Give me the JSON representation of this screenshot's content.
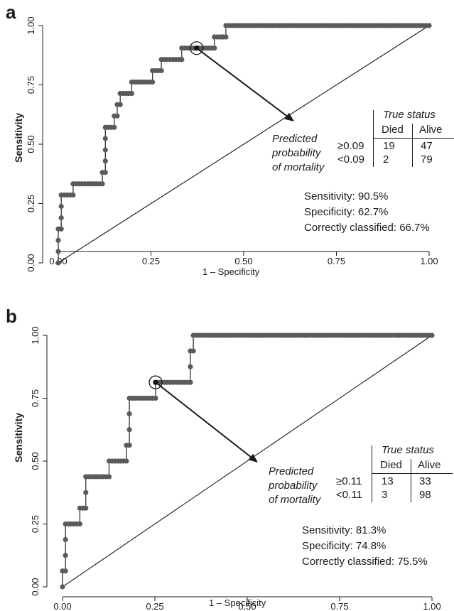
{
  "chart_data": [
    {
      "panel_label": "a",
      "type": "line",
      "xlabel": "1 – Specificity",
      "ylabel": "Sensitivity",
      "xlim": [
        0,
        1
      ],
      "ylim": [
        0,
        1
      ],
      "xticks": [
        "0.00",
        "0.25",
        "0.50",
        "0.75",
        "1.00"
      ],
      "yticks": [
        "0.00",
        "0.25",
        "0.50",
        "0.75",
        "1.00"
      ],
      "roc_points": [
        [
          0,
          0
        ],
        [
          0,
          0.048
        ],
        [
          0,
          0.095
        ],
        [
          0,
          0.143
        ],
        [
          0.008,
          0.143
        ],
        [
          0.008,
          0.19
        ],
        [
          0.008,
          0.238
        ],
        [
          0.008,
          0.286
        ],
        [
          0.016,
          0.286
        ],
        [
          0.024,
          0.286
        ],
        [
          0.032,
          0.286
        ],
        [
          0.04,
          0.286
        ],
        [
          0.04,
          0.333
        ],
        [
          0.048,
          0.333
        ],
        [
          0.056,
          0.333
        ],
        [
          0.064,
          0.333
        ],
        [
          0.072,
          0.333
        ],
        [
          0.08,
          0.333
        ],
        [
          0.087,
          0.333
        ],
        [
          0.095,
          0.333
        ],
        [
          0.103,
          0.333
        ],
        [
          0.111,
          0.333
        ],
        [
          0.119,
          0.333
        ],
        [
          0.119,
          0.381
        ],
        [
          0.127,
          0.381
        ],
        [
          0.127,
          0.429
        ],
        [
          0.127,
          0.476
        ],
        [
          0.127,
          0.524
        ],
        [
          0.127,
          0.571
        ],
        [
          0.135,
          0.571
        ],
        [
          0.143,
          0.571
        ],
        [
          0.151,
          0.571
        ],
        [
          0.151,
          0.619
        ],
        [
          0.159,
          0.619
        ],
        [
          0.159,
          0.667
        ],
        [
          0.167,
          0.667
        ],
        [
          0.167,
          0.714
        ],
        [
          0.175,
          0.714
        ],
        [
          0.183,
          0.714
        ],
        [
          0.19,
          0.714
        ],
        [
          0.198,
          0.714
        ],
        [
          0.198,
          0.762
        ],
        [
          0.206,
          0.762
        ],
        [
          0.214,
          0.762
        ],
        [
          0.222,
          0.762
        ],
        [
          0.23,
          0.762
        ],
        [
          0.238,
          0.762
        ],
        [
          0.246,
          0.762
        ],
        [
          0.254,
          0.762
        ],
        [
          0.254,
          0.81
        ],
        [
          0.262,
          0.81
        ],
        [
          0.27,
          0.81
        ],
        [
          0.278,
          0.81
        ],
        [
          0.278,
          0.857
        ],
        [
          0.286,
          0.857
        ],
        [
          0.294,
          0.857
        ],
        [
          0.302,
          0.857
        ],
        [
          0.31,
          0.857
        ],
        [
          0.317,
          0.857
        ],
        [
          0.325,
          0.857
        ],
        [
          0.333,
          0.857
        ],
        [
          0.333,
          0.905
        ],
        [
          0.341,
          0.905
        ],
        [
          0.349,
          0.905
        ],
        [
          0.357,
          0.905
        ],
        [
          0.365,
          0.905
        ],
        [
          0.373,
          0.905
        ],
        [
          0.381,
          0.905
        ],
        [
          0.389,
          0.905
        ],
        [
          0.397,
          0.905
        ],
        [
          0.405,
          0.905
        ],
        [
          0.413,
          0.905
        ],
        [
          0.421,
          0.905
        ],
        [
          0.421,
          0.952
        ],
        [
          0.429,
          0.952
        ],
        [
          0.437,
          0.952
        ],
        [
          0.444,
          0.952
        ],
        [
          0.452,
          0.952
        ],
        [
          0.452,
          1
        ],
        [
          0.46,
          1
        ],
        [
          0.468,
          1
        ],
        [
          0.476,
          1
        ],
        [
          0.484,
          1
        ],
        [
          0.492,
          1
        ],
        [
          0.5,
          1
        ],
        [
          0.508,
          1
        ],
        [
          0.516,
          1
        ],
        [
          0.524,
          1
        ],
        [
          0.532,
          1
        ],
        [
          0.54,
          1
        ],
        [
          0.548,
          1
        ],
        [
          0.556,
          1
        ],
        [
          0.563,
          1
        ],
        [
          0.571,
          1
        ],
        [
          0.579,
          1
        ],
        [
          0.587,
          1
        ],
        [
          0.595,
          1
        ],
        [
          0.603,
          1
        ],
        [
          0.611,
          1
        ],
        [
          0.619,
          1
        ],
        [
          0.627,
          1
        ],
        [
          0.635,
          1
        ],
        [
          0.643,
          1
        ],
        [
          0.651,
          1
        ],
        [
          0.659,
          1
        ],
        [
          0.667,
          1
        ],
        [
          0.675,
          1
        ],
        [
          0.683,
          1
        ],
        [
          0.69,
          1
        ],
        [
          0.698,
          1
        ],
        [
          0.706,
          1
        ],
        [
          0.714,
          1
        ],
        [
          0.722,
          1
        ],
        [
          0.73,
          1
        ],
        [
          0.738,
          1
        ],
        [
          0.746,
          1
        ],
        [
          0.754,
          1
        ],
        [
          0.762,
          1
        ],
        [
          0.77,
          1
        ],
        [
          0.778,
          1
        ],
        [
          0.786,
          1
        ],
        [
          0.794,
          1
        ],
        [
          0.802,
          1
        ],
        [
          0.81,
          1
        ],
        [
          0.817,
          1
        ],
        [
          0.825,
          1
        ],
        [
          0.833,
          1
        ],
        [
          0.841,
          1
        ],
        [
          0.849,
          1
        ],
        [
          0.857,
          1
        ],
        [
          0.865,
          1
        ],
        [
          0.873,
          1
        ],
        [
          0.881,
          1
        ],
        [
          0.889,
          1
        ],
        [
          0.897,
          1
        ],
        [
          0.905,
          1
        ],
        [
          0.913,
          1
        ],
        [
          0.921,
          1
        ],
        [
          0.929,
          1
        ],
        [
          0.937,
          1
        ],
        [
          0.944,
          1
        ],
        [
          0.952,
          1
        ],
        [
          0.96,
          1
        ],
        [
          0.968,
          1
        ],
        [
          0.976,
          1
        ],
        [
          0.984,
          1
        ],
        [
          0.992,
          1
        ],
        [
          1,
          1
        ]
      ],
      "reference_line": [
        [
          0,
          0
        ],
        [
          1,
          1
        ]
      ],
      "cutoff_point": [
        0.373,
        0.905
      ],
      "annotation": [
        "Predicted",
        "probability",
        "of mortality"
      ],
      "table": {
        "header": "True status",
        "columns": [
          "Died",
          "Alive"
        ],
        "rows": [
          {
            "label": "≥0.09",
            "values": [
              "19",
              "47"
            ]
          },
          {
            "label": "<0.09",
            "values": [
              "2",
              "79"
            ]
          }
        ]
      },
      "stats": [
        "Sensitivity: 90.5%",
        "Specificity: 62.7%",
        "Correctly classified: 66.7%"
      ],
      "color": "#5a5a5a"
    },
    {
      "panel_label": "b",
      "type": "line",
      "xlabel": "1 – Specificity",
      "ylabel": "Sensitivity",
      "xlim": [
        0,
        1
      ],
      "ylim": [
        0,
        1
      ],
      "xticks": [
        "0.00",
        "0.25",
        "0.50",
        "0.75",
        "1.00"
      ],
      "yticks": [
        "0.00",
        "0.25",
        "0.50",
        "0.75",
        "1.00"
      ],
      "roc_points": [
        [
          0,
          0
        ],
        [
          0,
          0.063
        ],
        [
          0.008,
          0.063
        ],
        [
          0.008,
          0.125
        ],
        [
          0.008,
          0.188
        ],
        [
          0.008,
          0.25
        ],
        [
          0.016,
          0.25
        ],
        [
          0.024,
          0.25
        ],
        [
          0.032,
          0.25
        ],
        [
          0.039,
          0.25
        ],
        [
          0.047,
          0.25
        ],
        [
          0.047,
          0.313
        ],
        [
          0.055,
          0.313
        ],
        [
          0.063,
          0.313
        ],
        [
          0.063,
          0.375
        ],
        [
          0.063,
          0.438
        ],
        [
          0.071,
          0.438
        ],
        [
          0.079,
          0.438
        ],
        [
          0.087,
          0.438
        ],
        [
          0.094,
          0.438
        ],
        [
          0.102,
          0.438
        ],
        [
          0.11,
          0.438
        ],
        [
          0.118,
          0.438
        ],
        [
          0.126,
          0.438
        ],
        [
          0.126,
          0.5
        ],
        [
          0.134,
          0.5
        ],
        [
          0.142,
          0.5
        ],
        [
          0.15,
          0.5
        ],
        [
          0.157,
          0.5
        ],
        [
          0.165,
          0.5
        ],
        [
          0.173,
          0.5
        ],
        [
          0.173,
          0.563
        ],
        [
          0.181,
          0.563
        ],
        [
          0.181,
          0.625
        ],
        [
          0.181,
          0.688
        ],
        [
          0.181,
          0.75
        ],
        [
          0.189,
          0.75
        ],
        [
          0.197,
          0.75
        ],
        [
          0.205,
          0.75
        ],
        [
          0.213,
          0.75
        ],
        [
          0.22,
          0.75
        ],
        [
          0.228,
          0.75
        ],
        [
          0.236,
          0.75
        ],
        [
          0.244,
          0.75
        ],
        [
          0.252,
          0.75
        ],
        [
          0.252,
          0.813
        ],
        [
          0.26,
          0.813
        ],
        [
          0.268,
          0.813
        ],
        [
          0.276,
          0.813
        ],
        [
          0.283,
          0.813
        ],
        [
          0.291,
          0.813
        ],
        [
          0.299,
          0.813
        ],
        [
          0.307,
          0.813
        ],
        [
          0.315,
          0.813
        ],
        [
          0.323,
          0.813
        ],
        [
          0.331,
          0.813
        ],
        [
          0.339,
          0.813
        ],
        [
          0.346,
          0.813
        ],
        [
          0.346,
          0.875
        ],
        [
          0.346,
          0.938
        ],
        [
          0.354,
          0.938
        ],
        [
          0.354,
          1
        ],
        [
          0.362,
          1
        ],
        [
          0.37,
          1
        ],
        [
          0.378,
          1
        ],
        [
          0.386,
          1
        ],
        [
          0.394,
          1
        ],
        [
          0.402,
          1
        ],
        [
          0.409,
          1
        ],
        [
          0.417,
          1
        ],
        [
          0.425,
          1
        ],
        [
          0.433,
          1
        ],
        [
          0.441,
          1
        ],
        [
          0.449,
          1
        ],
        [
          0.457,
          1
        ],
        [
          0.465,
          1
        ],
        [
          0.472,
          1
        ],
        [
          0.48,
          1
        ],
        [
          0.488,
          1
        ],
        [
          0.496,
          1
        ],
        [
          0.504,
          1
        ],
        [
          0.512,
          1
        ],
        [
          0.52,
          1
        ],
        [
          0.528,
          1
        ],
        [
          0.535,
          1
        ],
        [
          0.543,
          1
        ],
        [
          0.551,
          1
        ],
        [
          0.559,
          1
        ],
        [
          0.567,
          1
        ],
        [
          0.575,
          1
        ],
        [
          0.583,
          1
        ],
        [
          0.591,
          1
        ],
        [
          0.598,
          1
        ],
        [
          0.606,
          1
        ],
        [
          0.614,
          1
        ],
        [
          0.622,
          1
        ],
        [
          0.63,
          1
        ],
        [
          0.638,
          1
        ],
        [
          0.646,
          1
        ],
        [
          0.654,
          1
        ],
        [
          0.661,
          1
        ],
        [
          0.669,
          1
        ],
        [
          0.677,
          1
        ],
        [
          0.685,
          1
        ],
        [
          0.693,
          1
        ],
        [
          0.701,
          1
        ],
        [
          0.709,
          1
        ],
        [
          0.717,
          1
        ],
        [
          0.724,
          1
        ],
        [
          0.732,
          1
        ],
        [
          0.74,
          1
        ],
        [
          0.748,
          1
        ],
        [
          0.756,
          1
        ],
        [
          0.764,
          1
        ],
        [
          0.772,
          1
        ],
        [
          0.78,
          1
        ],
        [
          0.787,
          1
        ],
        [
          0.795,
          1
        ],
        [
          0.803,
          1
        ],
        [
          0.811,
          1
        ],
        [
          0.819,
          1
        ],
        [
          0.827,
          1
        ],
        [
          0.835,
          1
        ],
        [
          0.843,
          1
        ],
        [
          0.85,
          1
        ],
        [
          0.858,
          1
        ],
        [
          0.866,
          1
        ],
        [
          0.874,
          1
        ],
        [
          0.882,
          1
        ],
        [
          0.89,
          1
        ],
        [
          0.898,
          1
        ],
        [
          0.906,
          1
        ],
        [
          0.913,
          1
        ],
        [
          0.921,
          1
        ],
        [
          0.929,
          1
        ],
        [
          0.937,
          1
        ],
        [
          0.945,
          1
        ],
        [
          0.953,
          1
        ],
        [
          0.961,
          1
        ],
        [
          0.969,
          1
        ],
        [
          0.976,
          1
        ],
        [
          0.984,
          1
        ],
        [
          0.992,
          1
        ],
        [
          1,
          1
        ]
      ],
      "reference_line": [
        [
          0,
          0
        ],
        [
          1,
          1
        ]
      ],
      "cutoff_point": [
        0.252,
        0.813
      ],
      "annotation": [
        "Predicted",
        "probability",
        "of mortality"
      ],
      "table": {
        "header": "True status",
        "columns": [
          "Died",
          "Alive"
        ],
        "rows": [
          {
            "label": "≥0.11",
            "values": [
              "13",
              "33"
            ]
          },
          {
            "label": "<0.11",
            "values": [
              "3",
              "98"
            ]
          }
        ]
      },
      "stats": [
        "Sensitivity: 81.3%",
        "Specificity: 74.8%",
        "Correctly classified: 75.5%"
      ],
      "color": "#5a5a5a"
    }
  ]
}
